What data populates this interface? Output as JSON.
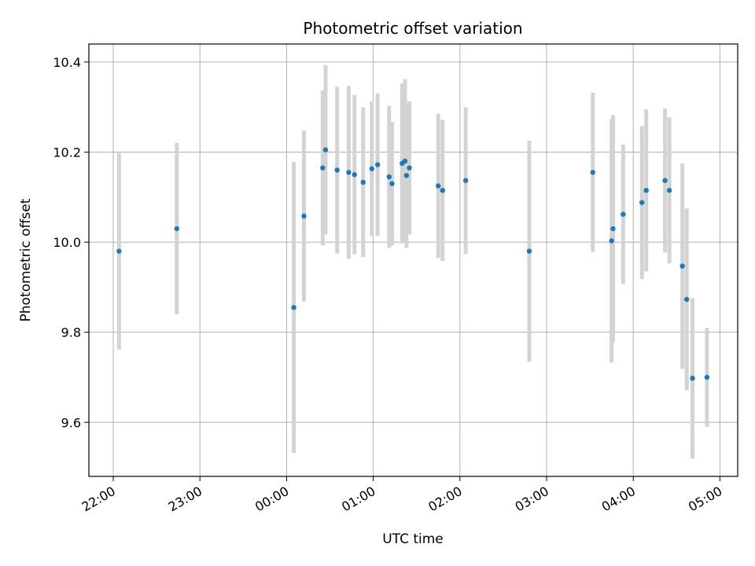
{
  "chart_data": {
    "type": "scatter",
    "title": "Photometric offset variation",
    "xlabel": "UTC time",
    "ylabel": "Photometric offset",
    "x_tick_labels": [
      "22:00",
      "23:00",
      "00:00",
      "01:00",
      "02:00",
      "03:00",
      "04:00",
      "05:00"
    ],
    "x_tick_hours": [
      22,
      23,
      24,
      25,
      26,
      27,
      28,
      29
    ],
    "y_ticks": [
      "9.6",
      "9.8",
      "10.0",
      "10.2",
      "10.4"
    ],
    "ylim": [
      9.48,
      10.44
    ],
    "grid": true,
    "points": [
      {
        "time": "22:04",
        "y": 9.98,
        "err": 0.218
      },
      {
        "time": "22:44",
        "y": 10.03,
        "err": 0.19
      },
      {
        "time": "00:05",
        "y": 9.855,
        "err": 0.323
      },
      {
        "time": "00:12",
        "y": 10.058,
        "err": 0.19
      },
      {
        "time": "00:25",
        "y": 10.165,
        "err": 0.172
      },
      {
        "time": "00:27",
        "y": 10.205,
        "err": 0.188
      },
      {
        "time": "00:35",
        "y": 10.16,
        "err": 0.185
      },
      {
        "time": "00:43",
        "y": 10.155,
        "err": 0.192
      },
      {
        "time": "00:47",
        "y": 10.15,
        "err": 0.177
      },
      {
        "time": "00:53",
        "y": 10.133,
        "err": 0.166
      },
      {
        "time": "00:59",
        "y": 10.163,
        "err": 0.15
      },
      {
        "time": "01:03",
        "y": 10.172,
        "err": 0.158
      },
      {
        "time": "01:11",
        "y": 10.145,
        "err": 0.158
      },
      {
        "time": "01:13",
        "y": 10.13,
        "err": 0.137
      },
      {
        "time": "01:20",
        "y": 10.175,
        "err": 0.178
      },
      {
        "time": "01:22",
        "y": 10.18,
        "err": 0.182
      },
      {
        "time": "01:23",
        "y": 10.148,
        "err": 0.16
      },
      {
        "time": "01:25",
        "y": 10.165,
        "err": 0.148
      },
      {
        "time": "01:45",
        "y": 10.125,
        "err": 0.16
      },
      {
        "time": "01:48",
        "y": 10.115,
        "err": 0.157
      },
      {
        "time": "02:04",
        "y": 10.137,
        "err": 0.163
      },
      {
        "time": "02:48",
        "y": 9.98,
        "err": 0.245
      },
      {
        "time": "03:32",
        "y": 10.155,
        "err": 0.177
      },
      {
        "time": "03:45",
        "y": 10.003,
        "err": 0.27
      },
      {
        "time": "03:46",
        "y": 10.03,
        "err": 0.252
      },
      {
        "time": "03:53",
        "y": 10.062,
        "err": 0.155
      },
      {
        "time": "04:06",
        "y": 10.088,
        "err": 0.17
      },
      {
        "time": "04:09",
        "y": 10.115,
        "err": 0.18
      },
      {
        "time": "04:22",
        "y": 10.137,
        "err": 0.16
      },
      {
        "time": "04:25",
        "y": 10.115,
        "err": 0.162
      },
      {
        "time": "04:34",
        "y": 9.947,
        "err": 0.228
      },
      {
        "time": "04:37",
        "y": 9.873,
        "err": 0.202
      },
      {
        "time": "04:41",
        "y": 9.698,
        "err": 0.178
      },
      {
        "time": "04:51",
        "y": 9.7,
        "err": 0.11
      }
    ],
    "colors": {
      "marker": "#1f77b4",
      "errorbar": "#d3d3d3",
      "grid": "#b0b0b0",
      "axes": "#000000"
    }
  }
}
